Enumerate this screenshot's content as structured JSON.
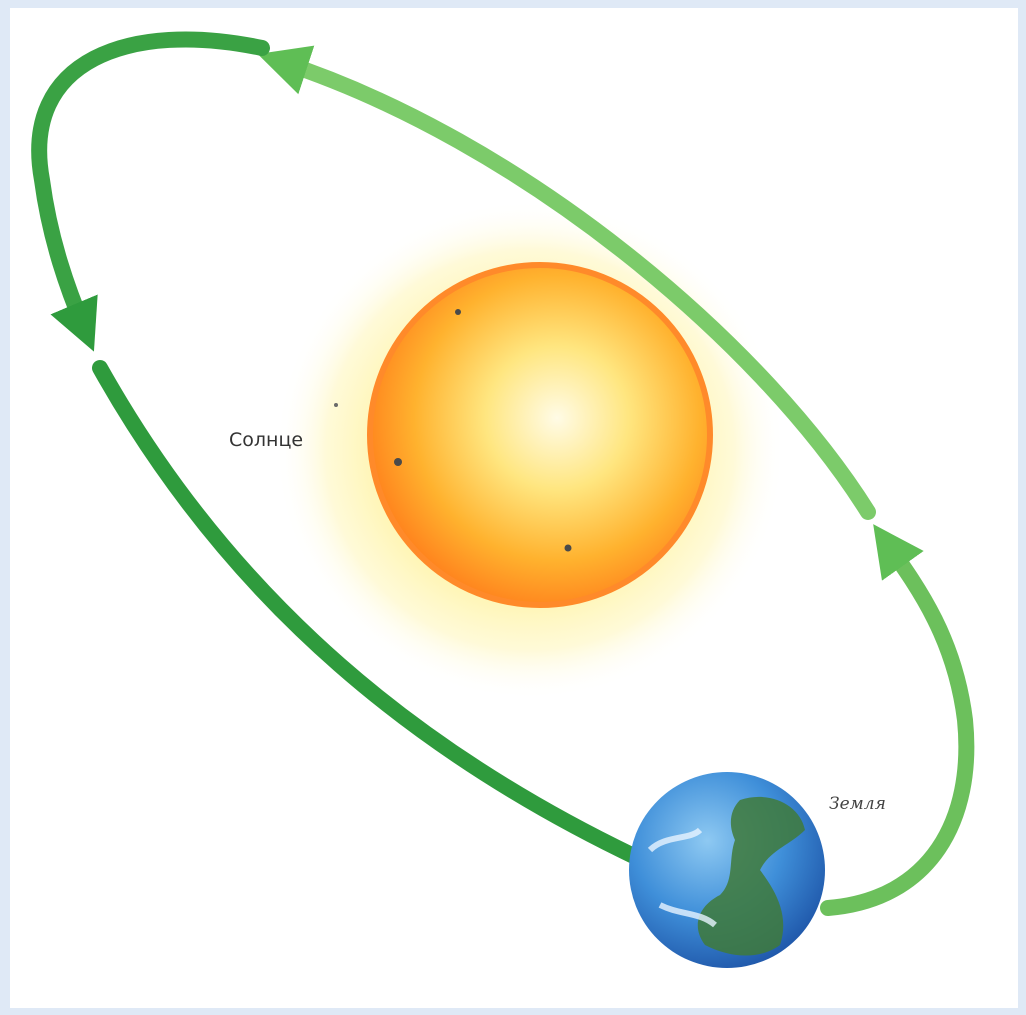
{
  "diagram": {
    "labels": {
      "sun": "Солнце",
      "earth": "Земля"
    },
    "colors": {
      "background_frame": "#dfe9f6",
      "page": "#ffffff",
      "orbit_arrow_dark": "#2e9a3c",
      "orbit_arrow_light": "#8fd67a",
      "sun_core": "#fffbe0",
      "sun_mid": "#ffc02a",
      "sun_edge": "#ff7a1a",
      "sun_corona": "#fff2a0",
      "earth_ocean": "#3b86d6",
      "earth_land": "#3f7a3a"
    }
  }
}
